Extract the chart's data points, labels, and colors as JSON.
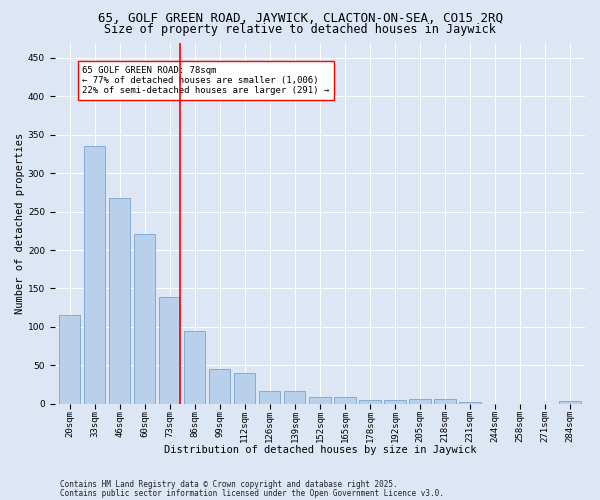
{
  "title1": "65, GOLF GREEN ROAD, JAYWICK, CLACTON-ON-SEA, CO15 2RQ",
  "title2": "Size of property relative to detached houses in Jaywick",
  "xlabel": "Distribution of detached houses by size in Jaywick",
  "ylabel": "Number of detached properties",
  "bar_labels": [
    "20sqm",
    "33sqm",
    "46sqm",
    "60sqm",
    "73sqm",
    "86sqm",
    "99sqm",
    "112sqm",
    "126sqm",
    "139sqm",
    "152sqm",
    "165sqm",
    "178sqm",
    "192sqm",
    "205sqm",
    "218sqm",
    "231sqm",
    "244sqm",
    "258sqm",
    "271sqm",
    "284sqm"
  ],
  "bar_values": [
    115,
    335,
    268,
    221,
    139,
    94,
    45,
    40,
    16,
    16,
    9,
    9,
    5,
    5,
    6,
    6,
    2,
    0,
    0,
    0,
    3
  ],
  "bar_color": "#b8d0ea",
  "bar_edge_color": "#6699cc",
  "vline_color": "red",
  "vline_x_index": 4,
  "annotation_text": "65 GOLF GREEN ROAD: 78sqm\n← 77% of detached houses are smaller (1,006)\n22% of semi-detached houses are larger (291) →",
  "annotation_box_color": "white",
  "annotation_box_edge": "red",
  "ylim": [
    0,
    470
  ],
  "yticks": [
    0,
    50,
    100,
    150,
    200,
    250,
    300,
    350,
    400,
    450
  ],
  "background_color": "#dce6f5",
  "plot_bg_color": "#dce6f5",
  "footer1": "Contains HM Land Registry data © Crown copyright and database right 2025.",
  "footer2": "Contains public sector information licensed under the Open Government Licence v3.0.",
  "title1_fontsize": 9,
  "title2_fontsize": 8.5,
  "axis_fontsize": 7.5,
  "tick_fontsize": 6.5,
  "annot_fontsize": 6.5,
  "footer_fontsize": 5.5
}
